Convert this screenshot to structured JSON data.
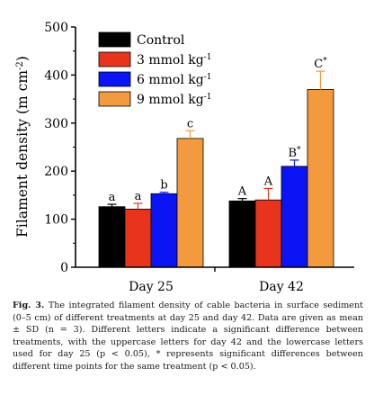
{
  "chart_data": {
    "type": "bar",
    "categories": [
      "Day 25",
      "Day 42"
    ],
    "ylabel": "Filament density (m cm⁻²)",
    "ylabel_parts": {
      "main": "Filament density (m cm",
      "sup": "-2",
      "close": ")"
    },
    "ylim": [
      0,
      500
    ],
    "yticks": [
      "0",
      "100",
      "200",
      "300",
      "400",
      "500"
    ],
    "grid": false,
    "legend_position": "top-left",
    "series": [
      {
        "name": "Control",
        "legend_main": "Control",
        "legend_sup": "",
        "color": "#000000",
        "values": [
          126,
          138
        ],
        "errors": [
          5,
          5
        ],
        "letters": [
          "a",
          "A"
        ],
        "stars": [
          "",
          ""
        ]
      },
      {
        "name": "3 mmol kg-1",
        "legend_main": "3 mmol kg",
        "legend_sup": "-1",
        "color": "#e8341c",
        "values": [
          121,
          140
        ],
        "errors": [
          12,
          24
        ],
        "letters": [
          "a",
          "A"
        ],
        "stars": [
          "",
          ""
        ]
      },
      {
        "name": "6 mmol kg-1",
        "legend_main": "6 mmol kg",
        "legend_sup": "-1",
        "color": "#0a14f5",
        "values": [
          153,
          210
        ],
        "errors": [
          3,
          13
        ],
        "letters": [
          "b",
          "B"
        ],
        "stars": [
          "",
          "*"
        ]
      },
      {
        "name": "9 mmol kg-1",
        "legend_main": "9 mmol kg",
        "legend_sup": "-1",
        "color": "#f49a3e",
        "values": [
          268,
          370
        ],
        "errors": [
          16,
          38
        ],
        "letters": [
          "c",
          "C"
        ],
        "stars": [
          "",
          "*"
        ]
      }
    ]
  },
  "caption": {
    "label": "Fig. 3.",
    "text": "The integrated filament density of cable bacteria in surface sediment (0–5 cm) of different treatments at day 25 and day 42. Data are given as mean ± SD (n = 3). Different letters indicate a significant difference between treatments, with the uppercase letters for day 42 and the lowercase letters used for day 25 (p < 0.05), * represents significant differences between different time points for the same treatment (p < 0.05)."
  }
}
